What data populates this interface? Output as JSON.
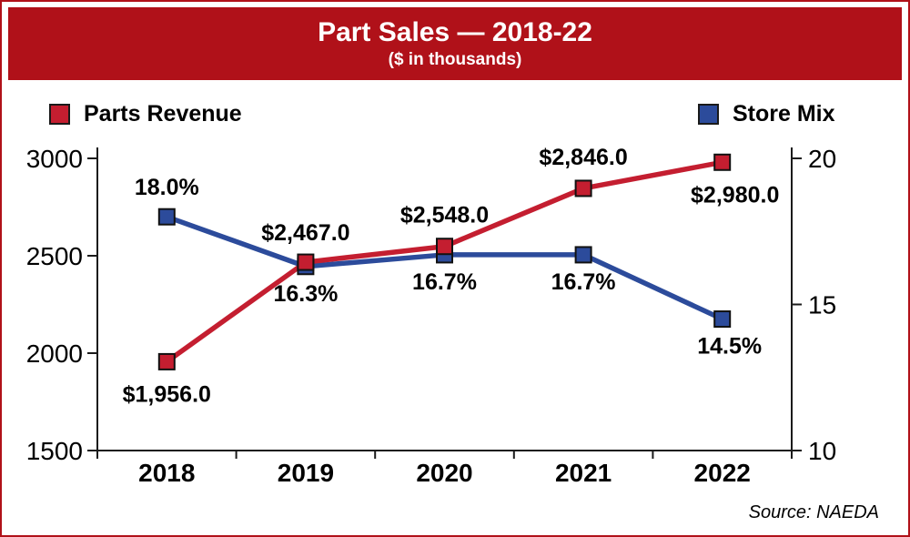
{
  "chart_data": {
    "type": "line",
    "title": "Part Sales — 2018-22",
    "subtitle": "($ in thousands)",
    "categories": [
      "2018",
      "2019",
      "2020",
      "2021",
      "2022"
    ],
    "series": [
      {
        "name": "Parts Revenue",
        "axis": "left",
        "color": "#c41e30",
        "values": [
          1956.0,
          2467.0,
          2548.0,
          2846.0,
          2980.0
        ],
        "labels": [
          "$1,956.0",
          "$2,467.0",
          "$2,548.0",
          "$2,846.0",
          "$2,980.0"
        ]
      },
      {
        "name": "Store Mix",
        "axis": "right",
        "color": "#2c4b9b",
        "values": [
          18.0,
          16.3,
          16.7,
          16.7,
          14.5
        ],
        "labels": [
          "18.0%",
          "16.3%",
          "16.7%",
          "16.7%",
          "14.5%"
        ]
      }
    ],
    "left_axis": {
      "min": 1500,
      "max": 3000,
      "ticks": [
        1500,
        2000,
        2500,
        3000
      ]
    },
    "right_axis": {
      "min": 10,
      "max": 20,
      "ticks": [
        10,
        15,
        20
      ]
    },
    "legend_position": "top",
    "grid": false,
    "source": "Source: NAEDA",
    "colors": {
      "banner": "#b01119",
      "axis": "#1a1a1a",
      "text": "#000000"
    }
  }
}
